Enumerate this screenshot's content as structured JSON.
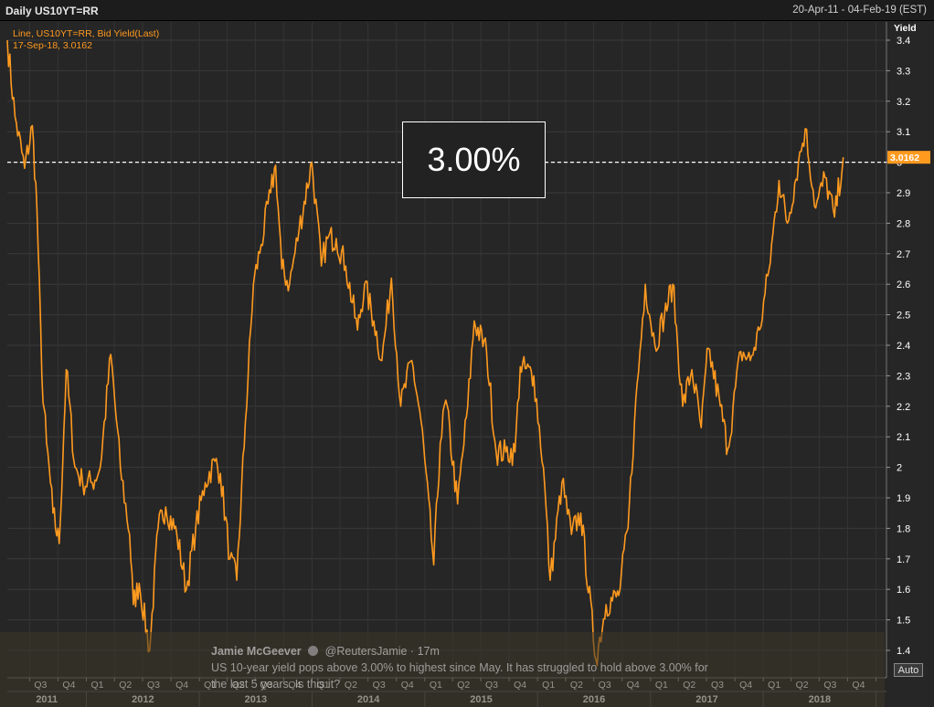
{
  "window": {
    "title": "Daily US10YT=RR",
    "date_range": "20-Apr-11 - 04-Feb-19 (EST)"
  },
  "legend": {
    "line1": "Line, US10YT=RR, Bid Yield(Last)",
    "line2": "17-Sep-18, 3.0162"
  },
  "callout": {
    "text": "3.00%"
  },
  "current_value_label": "3.0162",
  "auto_button": "Auto",
  "tweet": {
    "author": "Jamie McGeever",
    "handle": "@ReutersJamie · 17m",
    "text": "US 10-year yield pops above 3.00% to highest since May. It has struggled to hold above 3.00% for the last 5 years. Is this it?"
  },
  "colors": {
    "series": "#ff9a1f",
    "background": "#262626",
    "grid": "#3e3e3e",
    "axis_text": "#ffffff",
    "legend_text": "#ff9a1f"
  },
  "chart_data": {
    "type": "line",
    "ylabel": "Yield",
    "ylim": [
      1.35,
      3.45
    ],
    "y_ticks": [
      "3.4",
      "3.3",
      "3.2",
      "3.1",
      "3",
      "2.9",
      "2.8",
      "2.7",
      "2.6",
      "2.5",
      "2.4",
      "2.3",
      "2.2",
      "2.1",
      "2",
      "1.9",
      "1.8",
      "1.7",
      "1.6",
      "1.5",
      "1.4"
    ],
    "reference_line": 3.0,
    "x_range": [
      "2011-04-20",
      "2019-02-04"
    ],
    "quarter_ticks": [
      "Q3",
      "Q4",
      "Q1",
      "Q2",
      "Q3",
      "Q4",
      "Q1",
      "Q2",
      "Q3",
      "Q4",
      "Q1",
      "Q2",
      "Q3",
      "Q4",
      "Q1",
      "Q2",
      "Q3",
      "Q4",
      "Q1",
      "Q2",
      "Q3",
      "Q4",
      "Q1",
      "Q2",
      "Q3",
      "Q4",
      "Q1",
      "Q2",
      "Q3",
      "Q4",
      "Q1"
    ],
    "year_labels": [
      "2011",
      "2012",
      "2013",
      "2014",
      "2015",
      "2016",
      "2017",
      "2018"
    ],
    "series": [
      {
        "name": "US10YT=RR, Bid Yield(Last)",
        "x": [
          "2011-04-20",
          "2011-05-15",
          "2011-06-15",
          "2011-07-10",
          "2011-07-25",
          "2011-08-10",
          "2011-08-25",
          "2011-09-15",
          "2011-10-05",
          "2011-10-28",
          "2011-11-25",
          "2011-12-20",
          "2012-01-20",
          "2012-02-15",
          "2012-03-20",
          "2012-04-20",
          "2012-05-20",
          "2012-06-01",
          "2012-06-20",
          "2012-07-24",
          "2012-08-20",
          "2012-09-14",
          "2012-10-20",
          "2012-11-20",
          "2012-12-20",
          "2013-01-20",
          "2013-02-20",
          "2013-03-10",
          "2013-04-10",
          "2013-05-02",
          "2013-05-30",
          "2013-06-25",
          "2013-07-20",
          "2013-08-20",
          "2013-09-05",
          "2013-09-25",
          "2013-10-20",
          "2013-11-20",
          "2013-12-31",
          "2014-01-31",
          "2014-02-20",
          "2014-03-20",
          "2014-04-20",
          "2014-05-28",
          "2014-06-20",
          "2014-07-20",
          "2014-08-15",
          "2014-09-15",
          "2014-10-15",
          "2014-11-20",
          "2014-12-20",
          "2015-01-30",
          "2015-02-20",
          "2015-03-10",
          "2015-04-17",
          "2015-05-20",
          "2015-06-10",
          "2015-07-20",
          "2015-08-20",
          "2015-09-20",
          "2015-10-20",
          "2015-11-06",
          "2015-12-20",
          "2016-01-20",
          "2016-02-11",
          "2016-03-20",
          "2016-04-20",
          "2016-05-20",
          "2016-07-08",
          "2016-08-10",
          "2016-09-20",
          "2016-10-20",
          "2016-11-10",
          "2016-12-15",
          "2017-01-15",
          "2017-02-15",
          "2017-03-14",
          "2017-04-15",
          "2017-05-15",
          "2017-06-14",
          "2017-07-07",
          "2017-08-15",
          "2017-09-08",
          "2017-10-20",
          "2017-11-20",
          "2017-12-20",
          "2018-01-20",
          "2018-02-21",
          "2018-03-20",
          "2018-04-25",
          "2018-05-17",
          "2018-06-20",
          "2018-07-20",
          "2018-08-20",
          "2018-09-17"
        ],
        "values": [
          3.4,
          3.15,
          2.98,
          3.12,
          2.85,
          2.3,
          2.08,
          1.85,
          1.75,
          2.32,
          2.0,
          1.95,
          1.95,
          2.0,
          2.37,
          2.0,
          1.78,
          1.55,
          1.62,
          1.4,
          1.8,
          1.87,
          1.78,
          1.6,
          1.8,
          1.95,
          2.02,
          1.98,
          1.7,
          1.63,
          2.15,
          2.6,
          2.73,
          2.9,
          2.99,
          2.65,
          2.6,
          2.78,
          3.0,
          2.66,
          2.75,
          2.75,
          2.66,
          2.45,
          2.6,
          2.48,
          2.35,
          2.62,
          2.2,
          2.35,
          2.15,
          1.68,
          2.08,
          2.22,
          1.88,
          2.2,
          2.48,
          2.38,
          2.05,
          2.05,
          2.05,
          2.33,
          2.3,
          2.0,
          1.63,
          1.95,
          1.78,
          1.85,
          1.37,
          1.55,
          1.58,
          1.8,
          2.15,
          2.6,
          2.4,
          2.5,
          2.6,
          2.2,
          2.32,
          2.13,
          2.39,
          2.2,
          2.06,
          2.38,
          2.35,
          2.45,
          2.65,
          2.94,
          2.8,
          3.0,
          3.11,
          2.85,
          2.95,
          2.82,
          3.0162
        ]
      }
    ]
  }
}
